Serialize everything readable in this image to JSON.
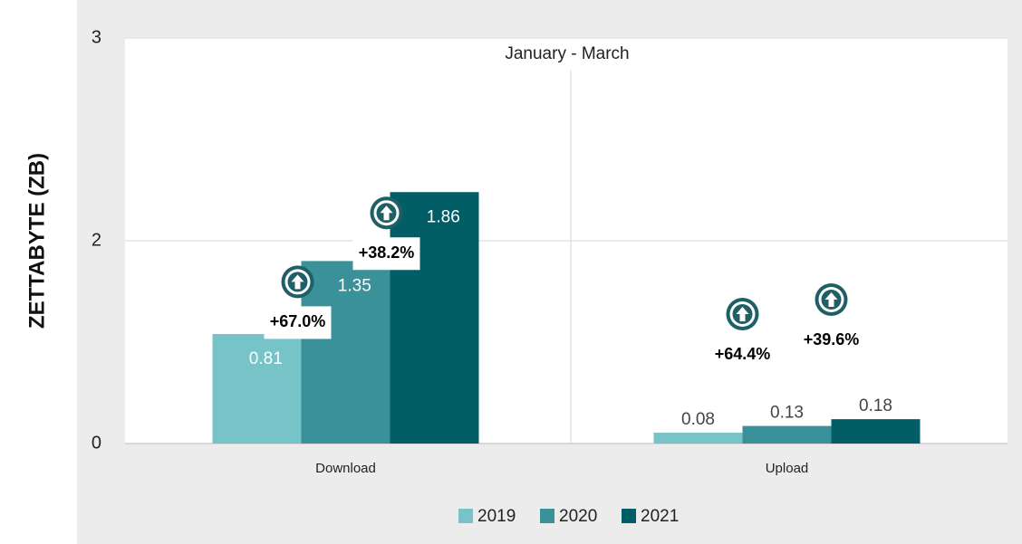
{
  "chart_data": {
    "type": "bar",
    "subtitle": "January - March",
    "y_label": "ZETTABYTE (ZB)",
    "categories": [
      "Download",
      "Upload"
    ],
    "series": [
      {
        "name": "2019",
        "color": "#76c3c8",
        "values": [
          0.81,
          0.08
        ]
      },
      {
        "name": "2020",
        "color": "#3a9199",
        "values": [
          1.35,
          0.13
        ],
        "change_labels": [
          "+67.0%",
          "+64.4%"
        ]
      },
      {
        "name": "2021",
        "color": "#015e66",
        "values": [
          1.86,
          0.18
        ],
        "change_labels": [
          "+38.2%",
          "+39.6%"
        ]
      }
    ],
    "ylim": [
      0,
      3
    ],
    "yticks": [
      0,
      {
        "value": 1.5,
        "label": "2"
      },
      3
    ],
    "grid": true,
    "legend": "bottom"
  }
}
